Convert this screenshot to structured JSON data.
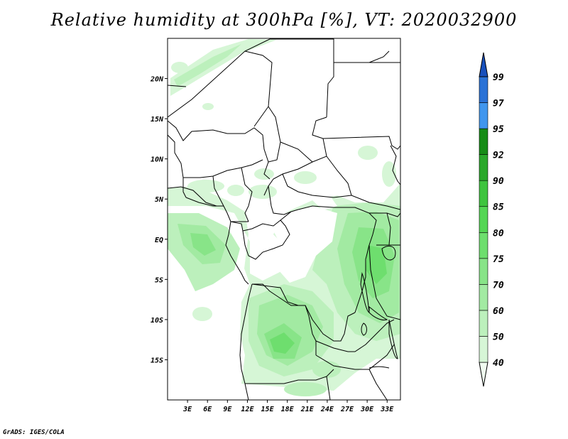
{
  "title": "Relative humidity at 300hPa [%], VT: 2020032900",
  "credit": "GrADS: IGES/COLA",
  "map": {
    "lat_range": [
      -20,
      25
    ],
    "lon_range": [
      0,
      35
    ],
    "lat_ticks": [
      {
        "value": 20,
        "label": "20N"
      },
      {
        "value": 15,
        "label": "15N"
      },
      {
        "value": 10,
        "label": "10N"
      },
      {
        "value": 5,
        "label": "5N"
      },
      {
        "value": 0,
        "label": "EQ"
      },
      {
        "value": -5,
        "label": "5S"
      },
      {
        "value": -10,
        "label": "10S"
      },
      {
        "value": -15,
        "label": "15S"
      }
    ],
    "lon_ticks": [
      {
        "value": 3,
        "label": "3E"
      },
      {
        "value": 6,
        "label": "6E"
      },
      {
        "value": 9,
        "label": "9E"
      },
      {
        "value": 12,
        "label": "12E"
      },
      {
        "value": 15,
        "label": "15E"
      },
      {
        "value": 18,
        "label": "18E"
      },
      {
        "value": 21,
        "label": "21E"
      },
      {
        "value": 24,
        "label": "24E"
      },
      {
        "value": 27,
        "label": "27E"
      },
      {
        "value": 30,
        "label": "30E"
      },
      {
        "value": 33,
        "label": "33E"
      }
    ]
  },
  "colorbar": {
    "levels": [
      "40",
      "50",
      "60",
      "70",
      "75",
      "80",
      "85",
      "90",
      "92",
      "95",
      "97",
      "99"
    ],
    "colors": [
      "#f0fcf0",
      "#d6f6d6",
      "#bcf0bc",
      "#a2eaa2",
      "#88e488",
      "#6ede6e",
      "#54d654",
      "#3ec43e",
      "#2aa82a",
      "#168c16",
      "#4096ee",
      "#2a72d6",
      "#1850bc"
    ]
  }
}
